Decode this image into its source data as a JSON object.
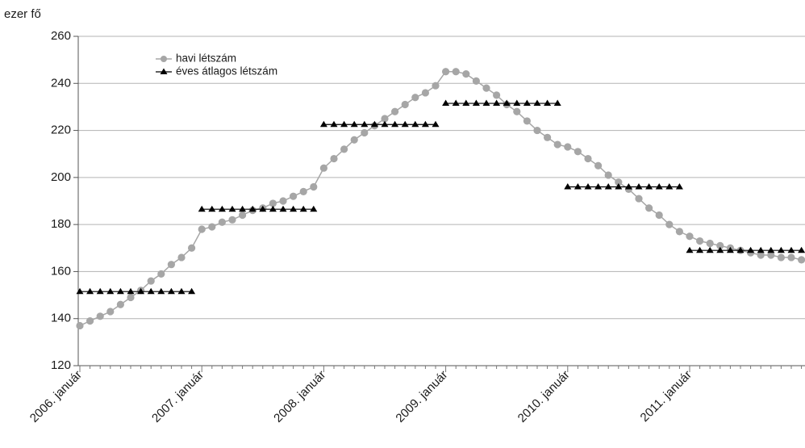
{
  "chart_data": {
    "type": "line",
    "y_unit_label": "ezer fő",
    "ylim": [
      120,
      260
    ],
    "y_ticks": [
      120,
      140,
      160,
      180,
      200,
      220,
      240,
      260
    ],
    "x_tick_labels": [
      "2006. január",
      "2007. január",
      "2008. január",
      "2009. január",
      "2010. január",
      "2011. január"
    ],
    "grid": "horizontal",
    "legend_position": "top-left",
    "series": [
      {
        "name": "havi létszám",
        "color": "#a6a6a6",
        "marker": "circle",
        "values": [
          137,
          139,
          141,
          143,
          146,
          149,
          152,
          156,
          159,
          163,
          166,
          170,
          178,
          179,
          181,
          182,
          184,
          186,
          187,
          189,
          190,
          192,
          194,
          196,
          204,
          208,
          212,
          216,
          219,
          222,
          225,
          228,
          231,
          234,
          236,
          239,
          245,
          245,
          244,
          241,
          238,
          235,
          231,
          228,
          224,
          220,
          217,
          214,
          213,
          211,
          208,
          205,
          201,
          198,
          195,
          191,
          187,
          184,
          180,
          177,
          175,
          173,
          172,
          171,
          170,
          169,
          168,
          167,
          167,
          166,
          166,
          165
        ]
      },
      {
        "name": "éves átlagos létszám",
        "color": "#000000",
        "marker": "triangle",
        "values": [
          151.5,
          151.5,
          151.5,
          151.5,
          151.5,
          151.5,
          151.5,
          151.5,
          151.5,
          151.5,
          151.5,
          151.5,
          186.5,
          186.5,
          186.5,
          186.5,
          186.5,
          186.5,
          186.5,
          186.5,
          186.5,
          186.5,
          186.5,
          186.5,
          222.5,
          222.5,
          222.5,
          222.5,
          222.5,
          222.5,
          222.5,
          222.5,
          222.5,
          222.5,
          222.5,
          222.5,
          231.5,
          231.5,
          231.5,
          231.5,
          231.5,
          231.5,
          231.5,
          231.5,
          231.5,
          231.5,
          231.5,
          231.5,
          196.0,
          196.0,
          196.0,
          196.0,
          196.0,
          196.0,
          196.0,
          196.0,
          196.0,
          196.0,
          196.0,
          196.0,
          169.0,
          169.0,
          169.0,
          169.0,
          169.0,
          169.0,
          169.0,
          169.0,
          169.0,
          169.0,
          169.0,
          169.0
        ]
      }
    ]
  }
}
